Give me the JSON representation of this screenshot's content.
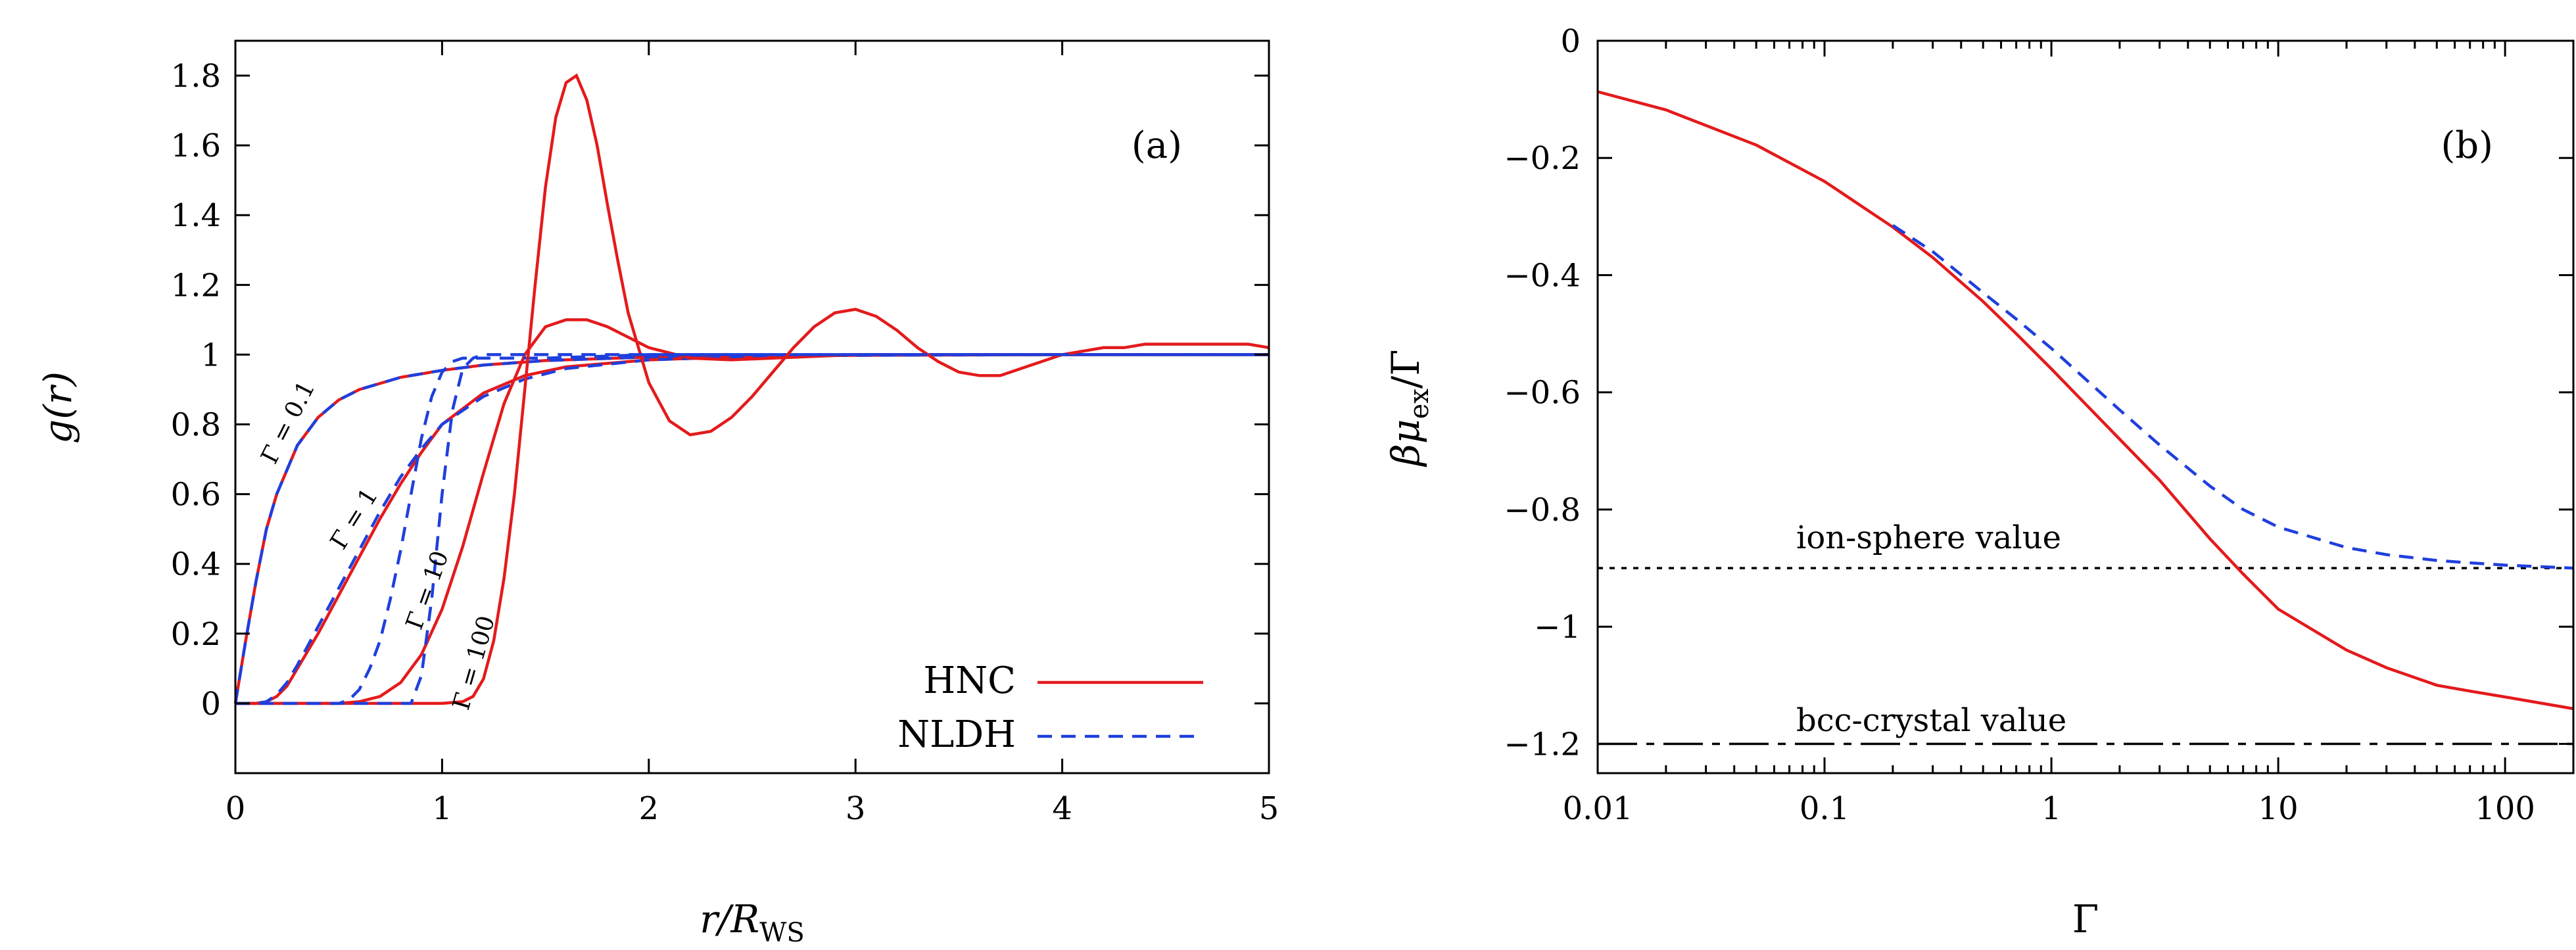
{
  "colors": {
    "hnc": "#e41a1c",
    "nldh": "#1f3fdd",
    "reference": "#000000"
  },
  "chart_data": [
    {
      "type": "line",
      "panel": "(a)",
      "xlabel_main": "r/R",
      "xlabel_sub": "WS",
      "ylabel": "g(r)",
      "xlim": [
        0,
        5
      ],
      "ylim": [
        -0.2,
        1.9
      ],
      "xticks": [
        0,
        1,
        2,
        3,
        4,
        5
      ],
      "yticks": [
        0,
        0.2,
        0.4,
        0.6,
        0.8,
        1,
        1.2,
        1.4,
        1.6,
        1.8
      ],
      "xtick_labels": [
        "0",
        "1",
        "2",
        "3",
        "4",
        "5"
      ],
      "ytick_labels": [
        "0",
        "0.2",
        "0.4",
        "0.6",
        "0.8",
        "1",
        "1.2",
        "1.4",
        "1.6",
        "1.8"
      ],
      "legend": {
        "position": "bottom-right",
        "entries": [
          {
            "name": "HNC",
            "style": "solid"
          },
          {
            "name": "NLDH",
            "style": "dashed"
          }
        ]
      },
      "curve_labels": [
        "Γ = 0.1",
        "Γ = 1",
        "Γ = 10",
        "Γ = 100"
      ],
      "series": [
        {
          "name": "HNC Γ=0.1",
          "method": "HNC",
          "x": [
            0,
            0.05,
            0.1,
            0.15,
            0.2,
            0.3,
            0.4,
            0.5,
            0.6,
            0.8,
            1.0,
            1.2,
            1.5,
            2.0,
            3.0,
            4.0,
            5.0
          ],
          "y": [
            0,
            0.18,
            0.35,
            0.5,
            0.6,
            0.74,
            0.82,
            0.87,
            0.9,
            0.935,
            0.955,
            0.97,
            0.983,
            0.993,
            0.998,
            1.0,
            1.0
          ]
        },
        {
          "name": "NLDH Γ=0.1",
          "method": "NLDH",
          "x": [
            0,
            0.05,
            0.1,
            0.15,
            0.2,
            0.3,
            0.4,
            0.5,
            0.6,
            0.8,
            1.0,
            1.2,
            1.5,
            2.0,
            3.0,
            4.0,
            5.0
          ],
          "y": [
            0,
            0.18,
            0.35,
            0.5,
            0.6,
            0.74,
            0.82,
            0.87,
            0.9,
            0.935,
            0.955,
            0.97,
            0.983,
            0.993,
            0.998,
            1.0,
            1.0
          ]
        },
        {
          "name": "HNC Γ=1",
          "method": "HNC",
          "x": [
            0,
            0.1,
            0.15,
            0.2,
            0.25,
            0.3,
            0.4,
            0.5,
            0.6,
            0.7,
            0.8,
            0.9,
            1.0,
            1.2,
            1.4,
            1.6,
            2.0,
            2.5,
            3.0,
            4.0,
            5.0
          ],
          "y": [
            0,
            0,
            0.005,
            0.02,
            0.05,
            0.1,
            0.2,
            0.31,
            0.42,
            0.53,
            0.63,
            0.72,
            0.8,
            0.89,
            0.94,
            0.965,
            0.985,
            0.995,
            1.0,
            1.0,
            1.0
          ]
        },
        {
          "name": "NLDH Γ=1",
          "method": "NLDH",
          "x": [
            0,
            0.1,
            0.15,
            0.2,
            0.25,
            0.3,
            0.4,
            0.5,
            0.6,
            0.7,
            0.8,
            0.9,
            1.0,
            1.2,
            1.4,
            1.6,
            2.0,
            2.5,
            3.0,
            4.0,
            5.0
          ],
          "y": [
            0,
            0,
            0.005,
            0.025,
            0.06,
            0.11,
            0.22,
            0.33,
            0.44,
            0.55,
            0.65,
            0.73,
            0.8,
            0.88,
            0.93,
            0.96,
            0.985,
            0.995,
            1.0,
            1.0,
            1.0
          ]
        },
        {
          "name": "HNC Γ=10",
          "method": "HNC",
          "x": [
            0,
            0.5,
            0.6,
            0.7,
            0.8,
            0.9,
            1.0,
            1.1,
            1.2,
            1.3,
            1.4,
            1.5,
            1.6,
            1.7,
            1.8,
            1.9,
            2.0,
            2.2,
            2.4,
            2.6,
            2.8,
            3.0,
            3.5,
            4.0,
            5.0
          ],
          "y": [
            0,
            0,
            0.005,
            0.02,
            0.06,
            0.14,
            0.27,
            0.45,
            0.66,
            0.86,
            1.0,
            1.08,
            1.1,
            1.1,
            1.08,
            1.05,
            1.02,
            0.99,
            0.985,
            0.99,
            0.995,
            1.0,
            1.0,
            1.0,
            1.0
          ]
        },
        {
          "name": "NLDH Γ=10",
          "method": "NLDH",
          "x": [
            0,
            0.5,
            0.55,
            0.6,
            0.65,
            0.7,
            0.75,
            0.8,
            0.85,
            0.9,
            0.95,
            1.0,
            1.05,
            1.1,
            1.15,
            1.2,
            1.3,
            1.5,
            2.0,
            3.0,
            4.0,
            5.0
          ],
          "y": [
            0,
            0,
            0.01,
            0.04,
            0.1,
            0.18,
            0.3,
            0.44,
            0.6,
            0.76,
            0.88,
            0.95,
            0.98,
            0.99,
            0.99,
            0.99,
            0.99,
            0.99,
            1.0,
            1.0,
            1.0,
            1.0
          ]
        },
        {
          "name": "HNC Γ=100",
          "method": "HNC",
          "x": [
            0,
            1.0,
            1.1,
            1.15,
            1.2,
            1.25,
            1.3,
            1.35,
            1.4,
            1.45,
            1.5,
            1.55,
            1.6,
            1.65,
            1.7,
            1.75,
            1.8,
            1.85,
            1.9,
            2.0,
            2.1,
            2.2,
            2.3,
            2.4,
            2.5,
            2.6,
            2.7,
            2.8,
            2.9,
            3.0,
            3.1,
            3.2,
            3.3,
            3.4,
            3.5,
            3.6,
            3.7,
            3.8,
            3.9,
            4.0,
            4.1,
            4.2,
            4.3,
            4.4,
            4.5,
            4.6,
            4.7,
            4.8,
            4.9,
            5.0
          ],
          "y": [
            0,
            0,
            0.005,
            0.02,
            0.07,
            0.18,
            0.36,
            0.6,
            0.9,
            1.2,
            1.48,
            1.68,
            1.78,
            1.8,
            1.73,
            1.6,
            1.43,
            1.27,
            1.12,
            0.92,
            0.81,
            0.77,
            0.78,
            0.82,
            0.88,
            0.95,
            1.02,
            1.08,
            1.12,
            1.13,
            1.11,
            1.07,
            1.02,
            0.98,
            0.95,
            0.94,
            0.94,
            0.96,
            0.98,
            1.0,
            1.01,
            1.02,
            1.02,
            1.03,
            1.03,
            1.03,
            1.03,
            1.03,
            1.03,
            1.02
          ]
        },
        {
          "name": "NLDH Γ=100",
          "method": "NLDH",
          "x": [
            0,
            0.85,
            0.9,
            0.95,
            1.0,
            1.05,
            1.1,
            1.15,
            1.2,
            1.3,
            1.4,
            1.5,
            1.7,
            2.0,
            3.0,
            4.0,
            5.0
          ],
          "y": [
            0,
            0,
            0.08,
            0.3,
            0.6,
            0.84,
            0.96,
            0.99,
            1.0,
            1.0,
            1.0,
            1.0,
            1.0,
            1.0,
            1.0,
            1.0,
            1.0
          ]
        }
      ]
    },
    {
      "type": "line",
      "panel": "(b)",
      "xscale": "log",
      "xlabel": "Γ",
      "ylabel_main": "βμ",
      "ylabel_sub": "ex",
      "ylabel_tail": "/Γ",
      "xlim": [
        0.01,
        200
      ],
      "ylim": [
        -1.25,
        0
      ],
      "xticks": [
        0.01,
        0.1,
        1,
        10,
        100
      ],
      "xtick_labels": [
        "0.01",
        "0.1",
        "1",
        "10",
        "100"
      ],
      "yticks": [
        0,
        -0.2,
        -0.4,
        -0.6,
        -0.8,
        -1,
        -1.2
      ],
      "ytick_labels": [
        "0",
        "−0.2",
        "−0.4",
        "−0.6",
        "−0.8",
        "−1",
        "−1.2"
      ],
      "reference_lines": [
        {
          "name": "ion-sphere value",
          "label": "ion-sphere value",
          "y": -0.9,
          "style": "dotted"
        },
        {
          "name": "bcc-crystal value",
          "label": "bcc-crystal value",
          "y": -1.2,
          "style": "dash-dot"
        }
      ],
      "series": [
        {
          "name": "HNC",
          "method": "HNC",
          "x": [
            0.01,
            0.02,
            0.05,
            0.1,
            0.2,
            0.3,
            0.5,
            0.7,
            1,
            2,
            3,
            5,
            7,
            10,
            20,
            30,
            50,
            70,
            100,
            200
          ],
          "y": [
            -0.087,
            -0.118,
            -0.178,
            -0.24,
            -0.318,
            -0.37,
            -0.445,
            -0.5,
            -0.56,
            -0.68,
            -0.75,
            -0.85,
            -0.91,
            -0.97,
            -1.04,
            -1.07,
            -1.1,
            -1.11,
            -1.12,
            -1.14
          ]
        },
        {
          "name": "NLDH",
          "method": "NLDH",
          "x": [
            0.2,
            0.3,
            0.5,
            0.7,
            1,
            2,
            3,
            5,
            7,
            10,
            20,
            30,
            50,
            70,
            100,
            200
          ],
          "y": [
            -0.315,
            -0.36,
            -0.43,
            -0.475,
            -0.525,
            -0.63,
            -0.69,
            -0.76,
            -0.8,
            -0.83,
            -0.865,
            -0.877,
            -0.887,
            -0.891,
            -0.895,
            -0.9
          ]
        }
      ]
    }
  ]
}
